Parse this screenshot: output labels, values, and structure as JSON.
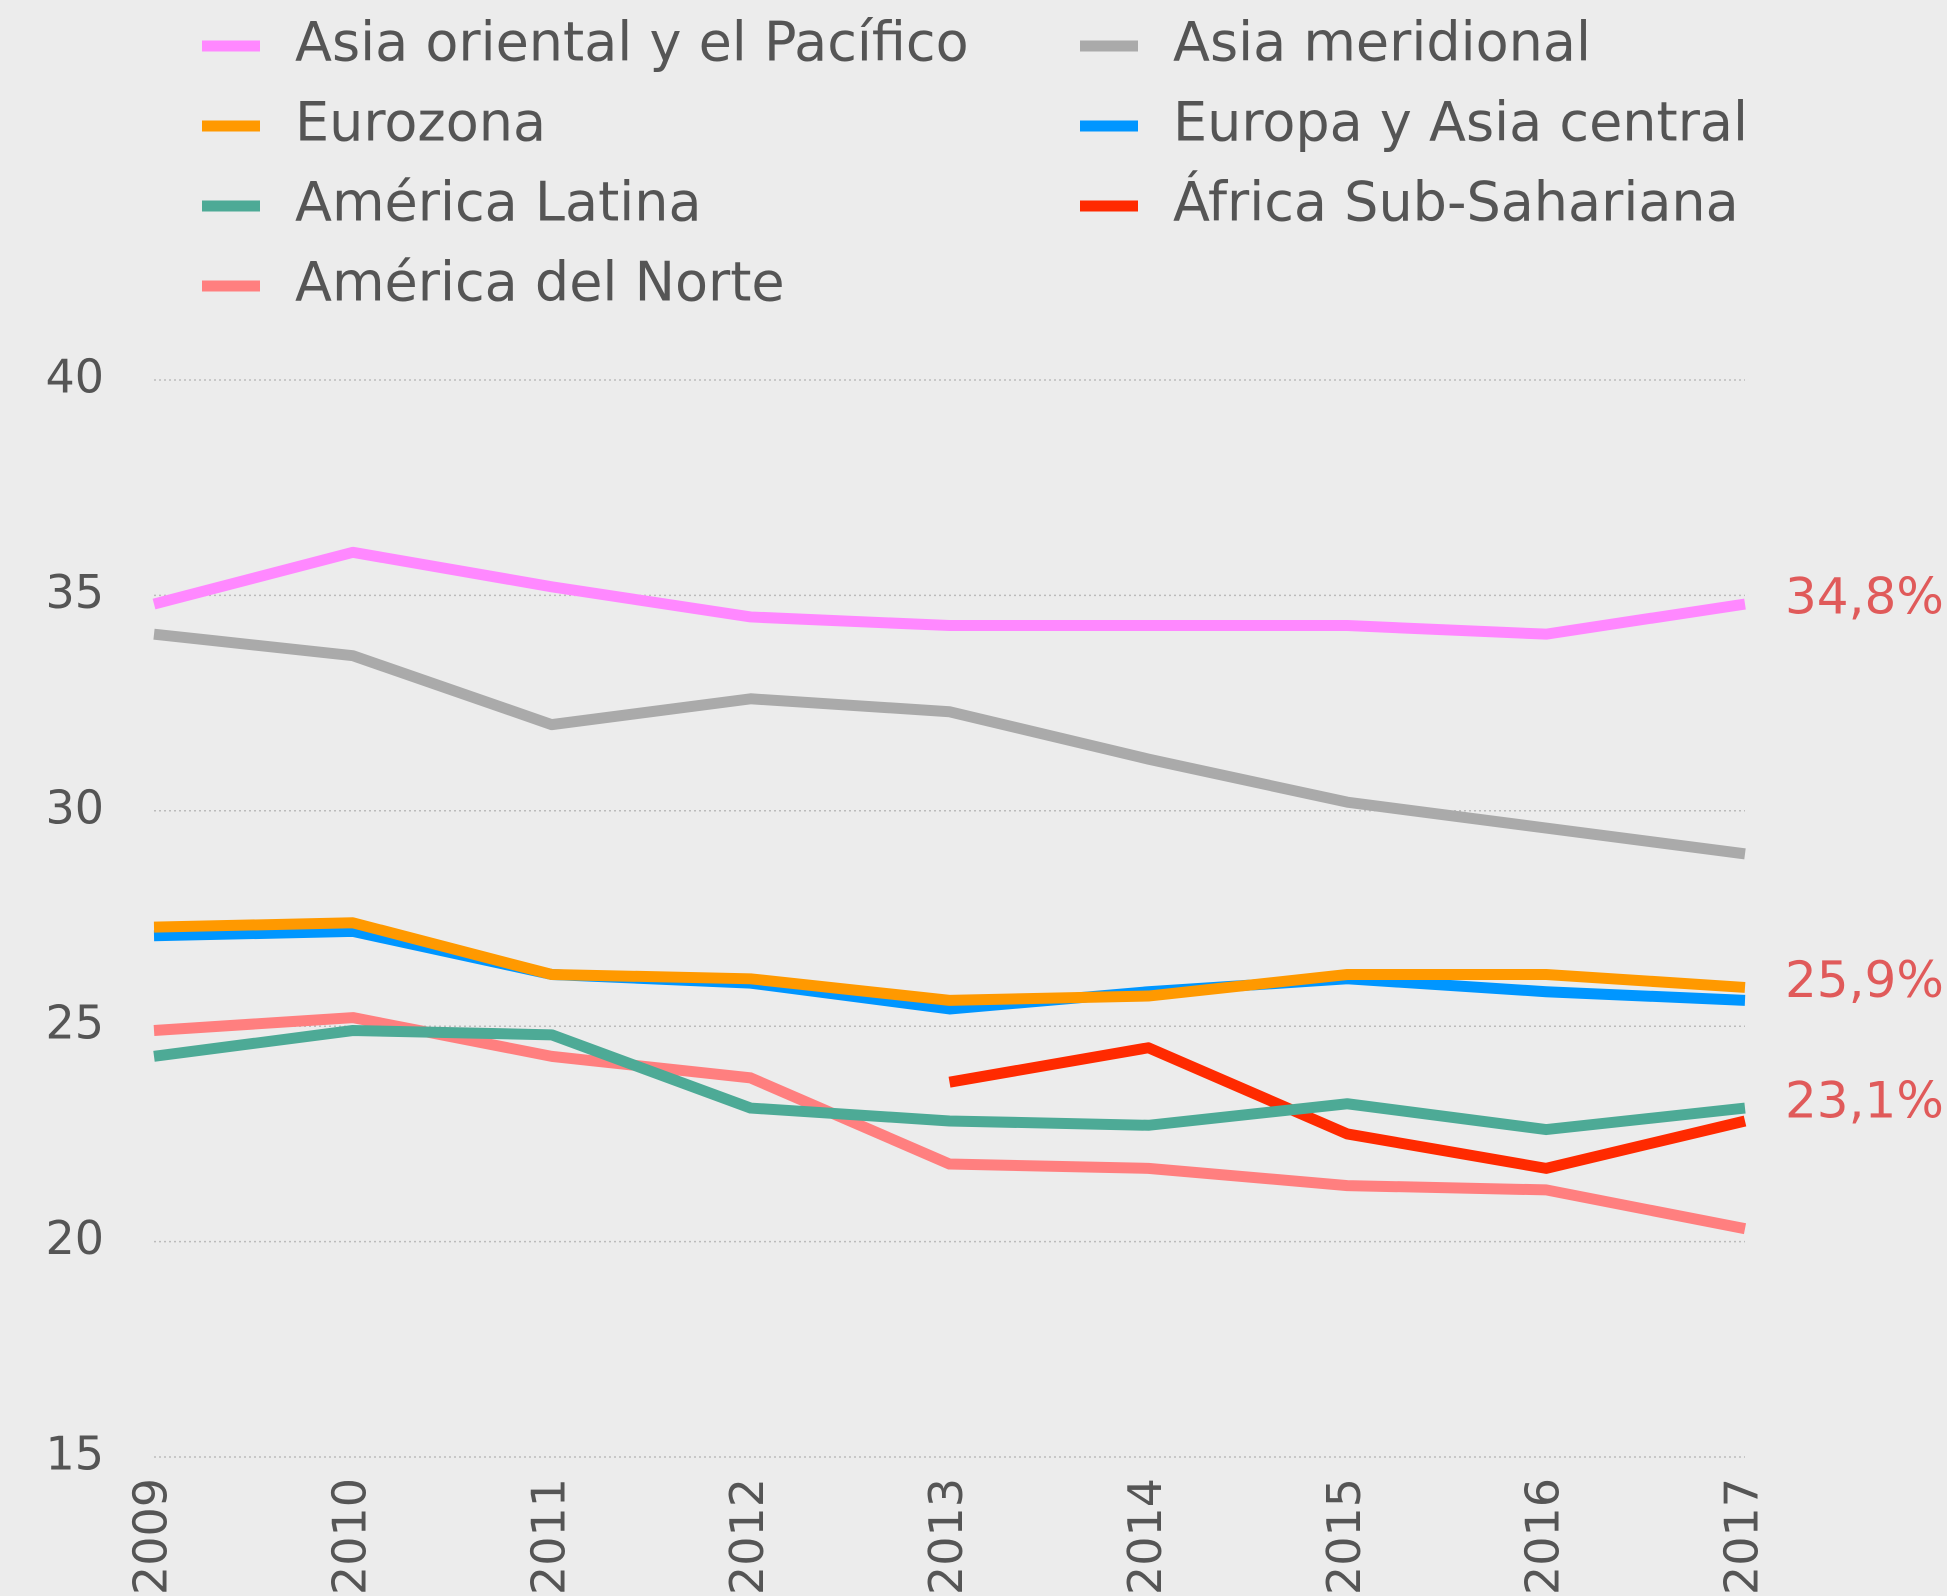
{
  "chart_data": {
    "type": "line",
    "categories": [
      "2009",
      "2010",
      "2011",
      "2012",
      "2013",
      "2014",
      "2015",
      "2016",
      "2017"
    ],
    "series": [
      {
        "name": "Asia oriental y el Pacífico",
        "color": "#ff88ff",
        "values": [
          34.8,
          36.0,
          35.2,
          34.5,
          34.3,
          34.3,
          34.3,
          34.1,
          34.8
        ],
        "value_labels": [
          null,
          null,
          null,
          null,
          null,
          null,
          null,
          null,
          "34,8%"
        ]
      },
      {
        "name": "Eurozona",
        "color": "#ff9900",
        "values": [
          27.3,
          27.4,
          26.2,
          26.1,
          25.6,
          25.7,
          26.2,
          26.2,
          25.9
        ],
        "value_labels": [
          null,
          null,
          null,
          null,
          null,
          null,
          null,
          null,
          "25,9%"
        ]
      },
      {
        "name": "América Latina",
        "color": "#4daa96",
        "values": [
          24.3,
          24.9,
          24.8,
          23.1,
          22.8,
          22.7,
          23.2,
          22.6,
          23.1
        ],
        "value_labels": [
          null,
          null,
          null,
          null,
          null,
          null,
          null,
          null,
          "23,1%"
        ]
      },
      {
        "name": "América del Norte",
        "color": "#ff7f7f",
        "values": [
          24.9,
          25.2,
          24.3,
          23.8,
          21.8,
          21.7,
          21.3,
          21.2,
          20.3
        ]
      },
      {
        "name": "Asia meridional",
        "color": "#aaaaaa",
        "values": [
          34.1,
          33.6,
          32.0,
          32.6,
          32.3,
          31.2,
          30.2,
          29.6,
          29.0
        ]
      },
      {
        "name": "Europa y Asia central",
        "color": "#0096ff",
        "values": [
          27.1,
          27.2,
          26.2,
          26.0,
          25.4,
          25.8,
          26.1,
          25.8,
          25.6
        ]
      },
      {
        "name": "África Sub-Sahariana",
        "color": "#ff2a00",
        "values": [
          null,
          null,
          null,
          null,
          23.7,
          24.5,
          22.5,
          21.7,
          22.8
        ]
      }
    ],
    "ylim": [
      15,
      40
    ],
    "yticks": [
      15,
      20,
      25,
      30,
      35,
      40
    ],
    "grid": true,
    "value_label_color": "#e05a5a"
  }
}
